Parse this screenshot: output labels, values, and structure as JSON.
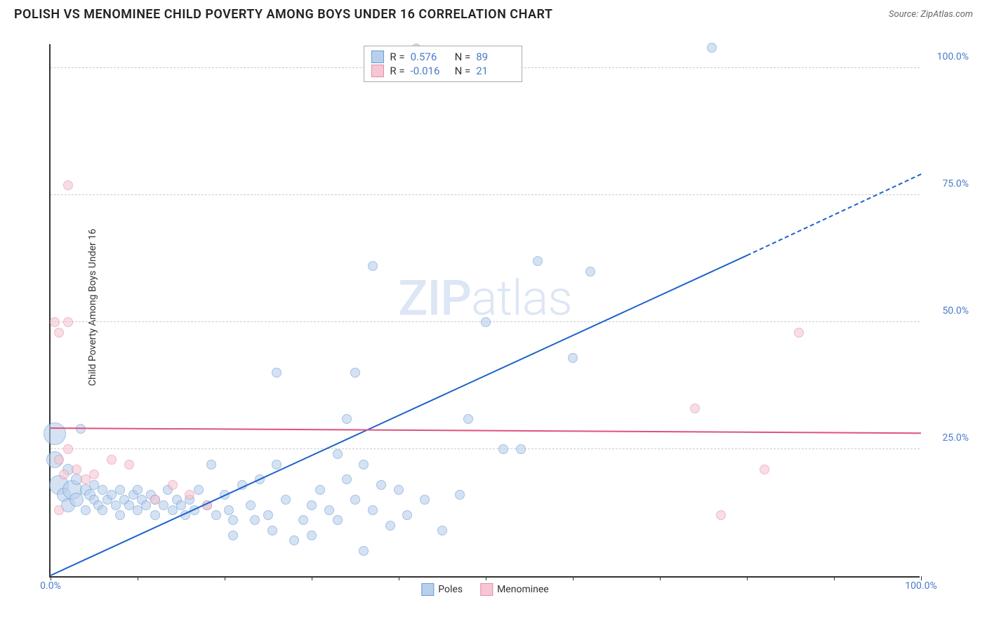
{
  "header": {
    "title": "POLISH VS MENOMINEE CHILD POVERTY AMONG BOYS UNDER 16 CORRELATION CHART",
    "source": "Source: ZipAtlas.com"
  },
  "watermark": {
    "part1": "ZIP",
    "part2": "atlas"
  },
  "chart": {
    "type": "scatter",
    "background_color": "#ffffff",
    "grid_color": "#cccccc",
    "axis_color": "#333333",
    "tick_label_color": "#4a7bc8",
    "y_axis_label": "Child Poverty Among Boys Under 16",
    "xlim": [
      0,
      100
    ],
    "ylim": [
      0,
      105
    ],
    "x_ticks": [
      0,
      10,
      20,
      30,
      40,
      50,
      60,
      70,
      80,
      90,
      100
    ],
    "x_tick_labels_shown": {
      "0": "0.0%",
      "100": "100.0%"
    },
    "y_ticks": [
      25,
      50,
      75,
      100
    ],
    "y_tick_labels": {
      "25": "25.0%",
      "50": "50.0%",
      "75": "75.0%",
      "100": "100.0%"
    },
    "series": [
      {
        "key": "poles",
        "label": "Poles",
        "fill_color": "#b8d0ec",
        "fill_opacity": 0.6,
        "stroke_color": "#6b9bd1",
        "stats": {
          "R": "0.576",
          "N": "89"
        },
        "trend": {
          "color": "#1e62c9",
          "x1": 0,
          "y1": 0,
          "x2": 80,
          "y2": 63,
          "dash_x2": 100,
          "dash_y2": 79
        },
        "points": [
          {
            "x": 0.5,
            "y": 28,
            "r": 16
          },
          {
            "x": 0.5,
            "y": 23,
            "r": 12
          },
          {
            "x": 1,
            "y": 18,
            "r": 14
          },
          {
            "x": 1.5,
            "y": 16,
            "r": 10
          },
          {
            "x": 2,
            "y": 21,
            "r": 8
          },
          {
            "x": 2,
            "y": 14,
            "r": 10
          },
          {
            "x": 2.5,
            "y": 17,
            "r": 14
          },
          {
            "x": 3,
            "y": 19,
            "r": 8
          },
          {
            "x": 3,
            "y": 15,
            "r": 10
          },
          {
            "x": 3.5,
            "y": 29,
            "r": 7
          },
          {
            "x": 4,
            "y": 17,
            "r": 8
          },
          {
            "x": 4,
            "y": 13,
            "r": 7
          },
          {
            "x": 4.5,
            "y": 16,
            "r": 8
          },
          {
            "x": 5,
            "y": 18,
            "r": 7
          },
          {
            "x": 5,
            "y": 15,
            "r": 7
          },
          {
            "x": 5.5,
            "y": 14,
            "r": 7
          },
          {
            "x": 6,
            "y": 17,
            "r": 7
          },
          {
            "x": 6,
            "y": 13,
            "r": 7
          },
          {
            "x": 6.5,
            "y": 15,
            "r": 7
          },
          {
            "x": 7,
            "y": 16,
            "r": 7
          },
          {
            "x": 7.5,
            "y": 14,
            "r": 7
          },
          {
            "x": 8,
            "y": 17,
            "r": 7
          },
          {
            "x": 8,
            "y": 12,
            "r": 7
          },
          {
            "x": 8.5,
            "y": 15,
            "r": 7
          },
          {
            "x": 9,
            "y": 14,
            "r": 7
          },
          {
            "x": 9.5,
            "y": 16,
            "r": 7
          },
          {
            "x": 10,
            "y": 13,
            "r": 7
          },
          {
            "x": 10,
            "y": 17,
            "r": 7
          },
          {
            "x": 10.5,
            "y": 15,
            "r": 7
          },
          {
            "x": 11,
            "y": 14,
            "r": 7
          },
          {
            "x": 11.5,
            "y": 16,
            "r": 7
          },
          {
            "x": 12,
            "y": 12,
            "r": 7
          },
          {
            "x": 12,
            "y": 15,
            "r": 7
          },
          {
            "x": 13,
            "y": 14,
            "r": 7
          },
          {
            "x": 13.5,
            "y": 17,
            "r": 7
          },
          {
            "x": 14,
            "y": 13,
            "r": 7
          },
          {
            "x": 14.5,
            "y": 15,
            "r": 7
          },
          {
            "x": 15,
            "y": 14,
            "r": 7
          },
          {
            "x": 15.5,
            "y": 12,
            "r": 7
          },
          {
            "x": 16,
            "y": 15,
            "r": 7
          },
          {
            "x": 16.5,
            "y": 13,
            "r": 7
          },
          {
            "x": 17,
            "y": 17,
            "r": 7
          },
          {
            "x": 18,
            "y": 14,
            "r": 7
          },
          {
            "x": 18.5,
            "y": 22,
            "r": 7
          },
          {
            "x": 19,
            "y": 12,
            "r": 7
          },
          {
            "x": 20,
            "y": 16,
            "r": 7
          },
          {
            "x": 20.5,
            "y": 13,
            "r": 7
          },
          {
            "x": 21,
            "y": 11,
            "r": 7
          },
          {
            "x": 21,
            "y": 8,
            "r": 7
          },
          {
            "x": 22,
            "y": 18,
            "r": 7
          },
          {
            "x": 23,
            "y": 14,
            "r": 7
          },
          {
            "x": 23.5,
            "y": 11,
            "r": 7
          },
          {
            "x": 24,
            "y": 19,
            "r": 7
          },
          {
            "x": 25,
            "y": 12,
            "r": 7
          },
          {
            "x": 25.5,
            "y": 9,
            "r": 7
          },
          {
            "x": 26,
            "y": 22,
            "r": 7
          },
          {
            "x": 26,
            "y": 40,
            "r": 7
          },
          {
            "x": 27,
            "y": 15,
            "r": 7
          },
          {
            "x": 28,
            "y": 7,
            "r": 7
          },
          {
            "x": 29,
            "y": 11,
            "r": 7
          },
          {
            "x": 30,
            "y": 14,
            "r": 7
          },
          {
            "x": 30,
            "y": 8,
            "r": 7
          },
          {
            "x": 31,
            "y": 17,
            "r": 7
          },
          {
            "x": 32,
            "y": 13,
            "r": 7
          },
          {
            "x": 33,
            "y": 24,
            "r": 7
          },
          {
            "x": 33,
            "y": 11,
            "r": 7
          },
          {
            "x": 34,
            "y": 19,
            "r": 7
          },
          {
            "x": 34,
            "y": 31,
            "r": 7
          },
          {
            "x": 35,
            "y": 40,
            "r": 7
          },
          {
            "x": 35,
            "y": 15,
            "r": 7
          },
          {
            "x": 36,
            "y": 22,
            "r": 7
          },
          {
            "x": 36,
            "y": 5,
            "r": 7
          },
          {
            "x": 37,
            "y": 13,
            "r": 7
          },
          {
            "x": 37,
            "y": 61,
            "r": 7
          },
          {
            "x": 38,
            "y": 18,
            "r": 7
          },
          {
            "x": 39,
            "y": 10,
            "r": 7
          },
          {
            "x": 40,
            "y": 17,
            "r": 7
          },
          {
            "x": 41,
            "y": 12,
            "r": 7
          },
          {
            "x": 42,
            "y": 104,
            "r": 6
          },
          {
            "x": 43,
            "y": 15,
            "r": 7
          },
          {
            "x": 45,
            "y": 9,
            "r": 7
          },
          {
            "x": 47,
            "y": 16,
            "r": 7
          },
          {
            "x": 48,
            "y": 31,
            "r": 7
          },
          {
            "x": 50,
            "y": 50,
            "r": 7
          },
          {
            "x": 52,
            "y": 25,
            "r": 7
          },
          {
            "x": 54,
            "y": 25,
            "r": 7
          },
          {
            "x": 56,
            "y": 62,
            "r": 7
          },
          {
            "x": 60,
            "y": 43,
            "r": 7
          },
          {
            "x": 62,
            "y": 60,
            "r": 7
          },
          {
            "x": 76,
            "y": 104,
            "r": 7
          }
        ]
      },
      {
        "key": "menominee",
        "label": "Menominee",
        "fill_color": "#f5c7d4",
        "fill_opacity": 0.6,
        "stroke_color": "#e88ba3",
        "stats": {
          "R": "-0.016",
          "N": "21"
        },
        "trend": {
          "color": "#e0527a",
          "x1": 0,
          "y1": 29,
          "x2": 100,
          "y2": 28
        },
        "points": [
          {
            "x": 0.5,
            "y": 50,
            "r": 7
          },
          {
            "x": 1,
            "y": 48,
            "r": 7
          },
          {
            "x": 2,
            "y": 50,
            "r": 7
          },
          {
            "x": 1,
            "y": 23,
            "r": 7
          },
          {
            "x": 1,
            "y": 13,
            "r": 7
          },
          {
            "x": 1.5,
            "y": 20,
            "r": 7
          },
          {
            "x": 2,
            "y": 25,
            "r": 7
          },
          {
            "x": 2,
            "y": 77,
            "r": 7
          },
          {
            "x": 3,
            "y": 21,
            "r": 7
          },
          {
            "x": 4,
            "y": 19,
            "r": 7
          },
          {
            "x": 5,
            "y": 20,
            "r": 7
          },
          {
            "x": 7,
            "y": 23,
            "r": 7
          },
          {
            "x": 9,
            "y": 22,
            "r": 7
          },
          {
            "x": 12,
            "y": 15,
            "r": 7
          },
          {
            "x": 14,
            "y": 18,
            "r": 7
          },
          {
            "x": 16,
            "y": 16,
            "r": 7
          },
          {
            "x": 18,
            "y": 14,
            "r": 7
          },
          {
            "x": 74,
            "y": 33,
            "r": 7
          },
          {
            "x": 77,
            "y": 12,
            "r": 7
          },
          {
            "x": 82,
            "y": 21,
            "r": 7
          },
          {
            "x": 86,
            "y": 48,
            "r": 7
          }
        ]
      }
    ],
    "stats_box": {
      "r_label": "R =",
      "n_label": "N ="
    },
    "legend": {
      "items": [
        "Poles",
        "Menominee"
      ]
    }
  }
}
